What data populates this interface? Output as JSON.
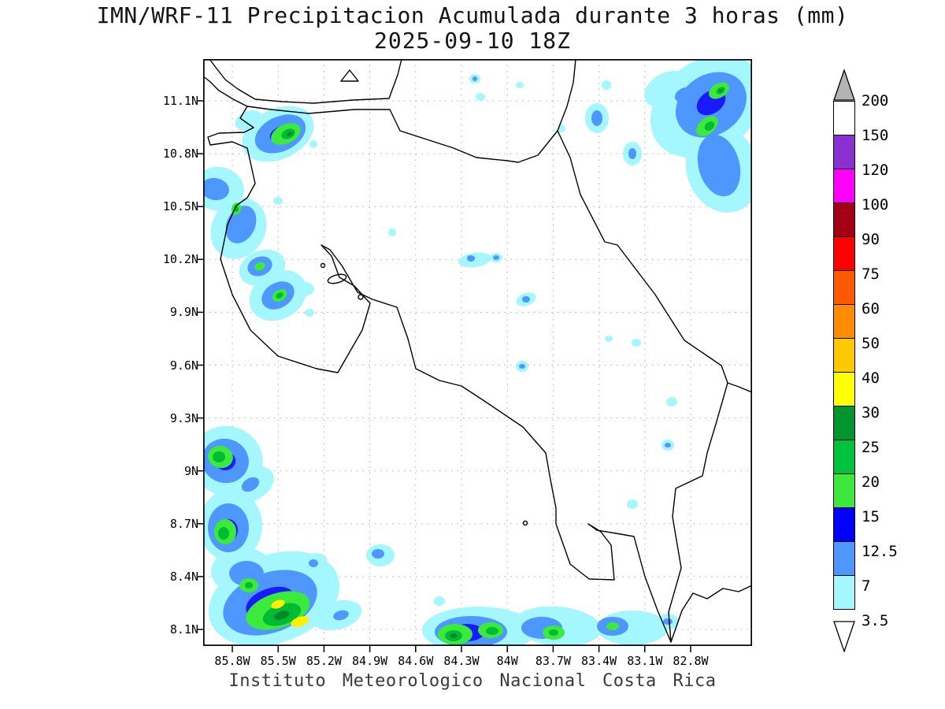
{
  "title": "IMN/WRF-11 Precipitacion Acumulada durante 3 horas (mm)",
  "subtitle": "2025-09-10 18Z",
  "footer": "Instituto Meteorologico Nacional Costa Rica",
  "map": {
    "y_ticks": [
      "11.1N",
      "10.8N",
      "10.5N",
      "10.2N",
      "9.9N",
      "9.6N",
      "9.3N",
      "9N",
      "8.7N",
      "8.4N",
      "8.1N"
    ],
    "x_ticks": [
      "85.8W",
      "85.5W",
      "85.2W",
      "84.9W",
      "84.6W",
      "84.3W",
      "84W",
      "83.7W",
      "83.4W",
      "83.1W",
      "82.8W"
    ]
  },
  "colorbar": {
    "units": "mm",
    "over_color": "#b3b3b3",
    "under_color": "#ffffff",
    "segments": [
      {
        "top_label": "200",
        "color": "#ffffff"
      },
      {
        "top_label": "150",
        "color": "#8a2fd0"
      },
      {
        "top_label": "120",
        "color": "#ff00ff"
      },
      {
        "top_label": "100",
        "color": "#a30016"
      },
      {
        "top_label": "90",
        "color": "#ff0000"
      },
      {
        "top_label": "75",
        "color": "#ff5a00"
      },
      {
        "top_label": "60",
        "color": "#ff8c00"
      },
      {
        "top_label": "50",
        "color": "#ffc800"
      },
      {
        "top_label": "40",
        "color": "#ffff00"
      },
      {
        "top_label": "30",
        "color": "#00952f"
      },
      {
        "top_label": "25",
        "color": "#00c23d"
      },
      {
        "top_label": "20",
        "color": "#3ce83c"
      },
      {
        "top_label": "15",
        "color": "#0000ff"
      },
      {
        "top_label": "12.5",
        "color": "#4d97ff"
      },
      {
        "top_label": "7",
        "color": "#a4f6ff"
      }
    ],
    "bottom_label": "3.5"
  }
}
